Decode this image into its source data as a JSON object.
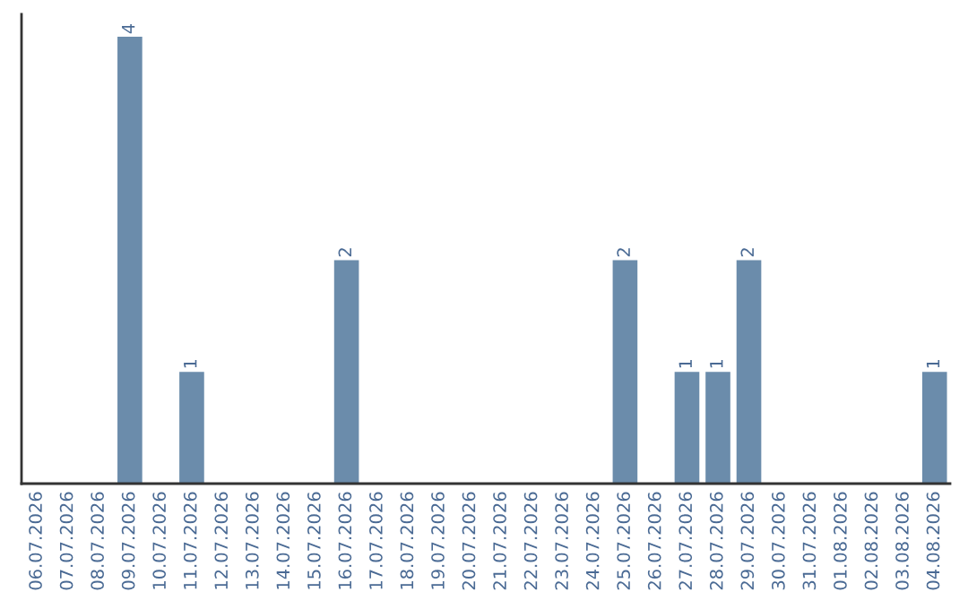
{
  "chart_data": {
    "type": "bar",
    "categories": [
      "06.07.2026",
      "07.07.2026",
      "08.07.2026",
      "09.07.2026",
      "10.07.2026",
      "11.07.2026",
      "12.07.2026",
      "13.07.2026",
      "14.07.2026",
      "15.07.2026",
      "16.07.2026",
      "17.07.2026",
      "18.07.2026",
      "19.07.2026",
      "20.07.2026",
      "21.07.2026",
      "22.07.2026",
      "23.07.2026",
      "24.07.2026",
      "25.07.2026",
      "26.07.2026",
      "27.07.2026",
      "28.07.2026",
      "29.07.2026",
      "30.07.2026",
      "31.07.2026",
      "01.08.2026",
      "02.08.2026",
      "03.08.2026",
      "04.08.2026"
    ],
    "values": [
      0,
      0,
      0,
      4,
      0,
      1,
      0,
      0,
      0,
      0,
      2,
      0,
      0,
      0,
      0,
      0,
      0,
      0,
      0,
      2,
      0,
      1,
      1,
      2,
      0,
      0,
      0,
      0,
      0,
      1
    ],
    "color": "#6b8cab",
    "ylim": [
      0,
      4.2
    ],
    "tick_labels": "x",
    "value_labels": [
      null,
      null,
      null,
      "4",
      null,
      "1",
      null,
      null,
      null,
      null,
      "2",
      null,
      null,
      null,
      null,
      null,
      null,
      null,
      null,
      "2",
      null,
      "1",
      "1",
      "2",
      null,
      null,
      null,
      null,
      null,
      "1"
    ],
    "grid": false,
    "legend": false
  }
}
